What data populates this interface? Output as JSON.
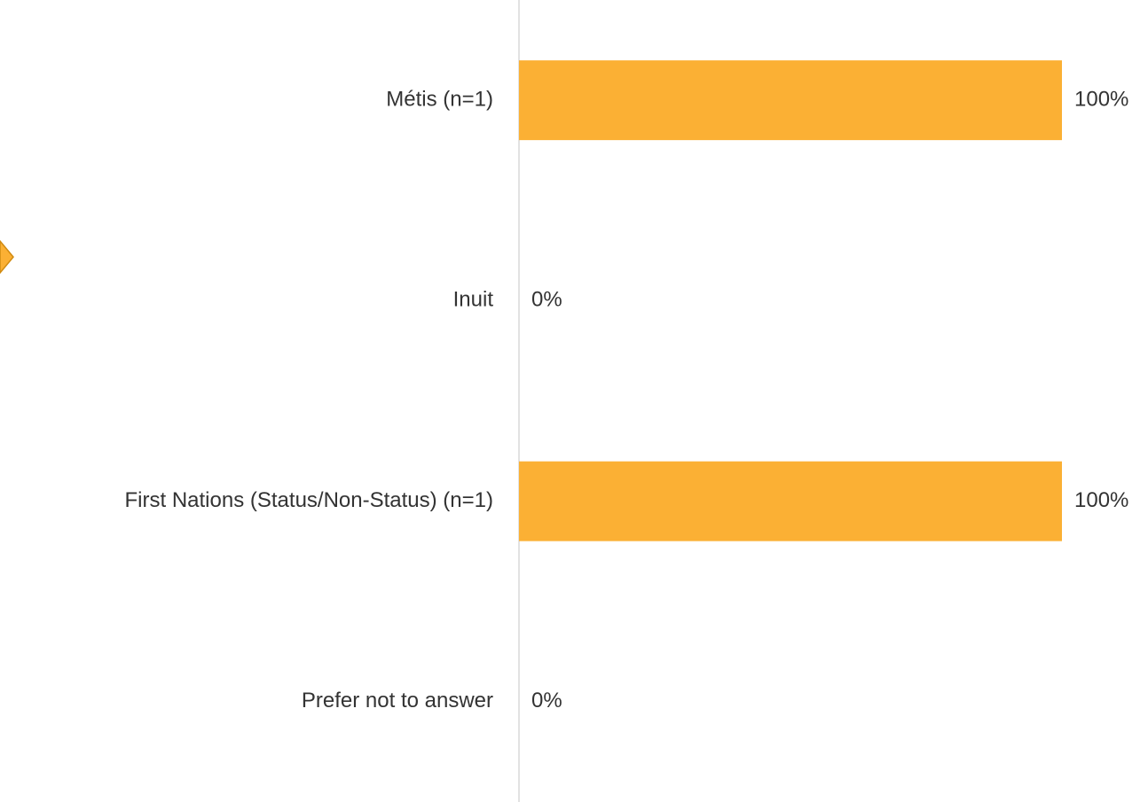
{
  "chart_data": {
    "type": "bar",
    "orientation": "horizontal",
    "categories": [
      "Métis (n=1)",
      "Inuit",
      "First Nations (Status/Non-Status) (n=1)",
      "Prefer not to answer"
    ],
    "values": [
      100,
      0,
      100,
      0
    ],
    "value_labels": [
      "100%",
      "0%",
      "100%",
      "0%"
    ],
    "color": "#fbb034",
    "xlim": [
      0,
      100
    ]
  }
}
